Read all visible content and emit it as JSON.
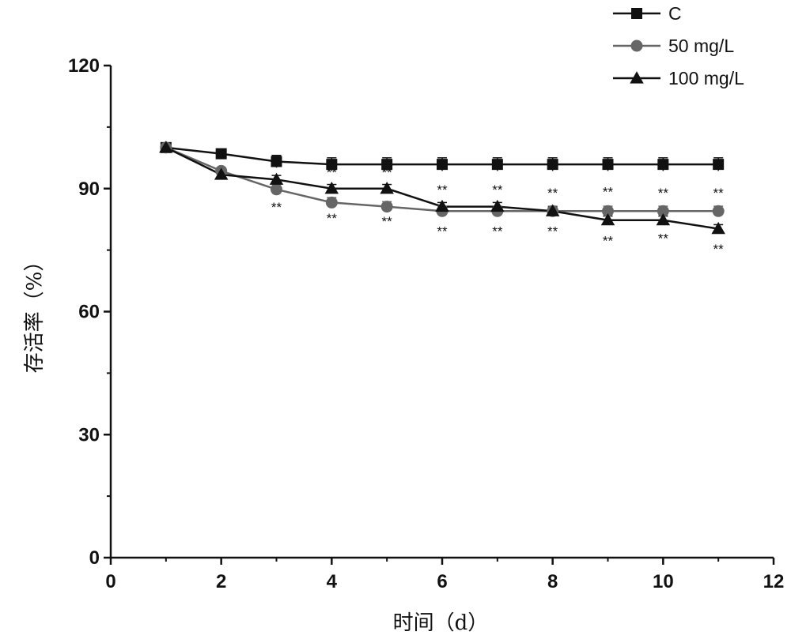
{
  "chart_data": {
    "type": "line",
    "title": "",
    "xlabel": "时间（d）",
    "ylabel": "存活率（%）",
    "xlim": [
      0,
      12
    ],
    "ylim": [
      0,
      120
    ],
    "xticks": [
      "0",
      "2",
      "4",
      "6",
      "8",
      "10",
      "12"
    ],
    "yticks": [
      "0",
      "30",
      "60",
      "90",
      "120"
    ],
    "legend_position": "top-right",
    "grid": false,
    "x": [
      1,
      2,
      3,
      4,
      5,
      6,
      7,
      8,
      9,
      10,
      11
    ],
    "series": [
      {
        "name": "C",
        "marker": "square",
        "color": "#111111",
        "values": [
          100,
          98.5,
          96.6,
          95.9,
          95.9,
          95.9,
          95.9,
          95.9,
          95.9,
          95.9,
          95.9
        ],
        "error": [
          0,
          0.8,
          1.5,
          1.6,
          1.6,
          1.6,
          1.6,
          1.6,
          1.6,
          1.6,
          1.6
        ]
      },
      {
        "name": "50 mg/L",
        "marker": "circle",
        "color": "#666666",
        "values": [
          100,
          94.3,
          89.8,
          86.6,
          85.6,
          84.5,
          84.5,
          84.5,
          84.5,
          84.5,
          84.5
        ],
        "error": [
          0,
          0.8,
          1.2,
          1.2,
          1.2,
          1.2,
          1.2,
          1.2,
          1.2,
          1.2,
          1.2
        ]
      },
      {
        "name": "100 mg/L",
        "marker": "triangle",
        "color": "#111111",
        "values": [
          100,
          93.4,
          92.2,
          90.0,
          90.0,
          85.6,
          85.6,
          84.5,
          82.3,
          82.3,
          80.2
        ],
        "error": [
          0,
          0.8,
          1.0,
          1.0,
          1.0,
          1.0,
          1.0,
          1.0,
          1.0,
          1.0,
          1.0
        ]
      }
    ],
    "annotations": [
      {
        "text": "**",
        "x": 4,
        "y": 92.8
      },
      {
        "text": "**",
        "x": 5,
        "y": 92.8
      },
      {
        "text": "**",
        "x": 6,
        "y": 88.6
      },
      {
        "text": "**",
        "x": 7,
        "y": 88.6
      },
      {
        "text": "**",
        "x": 8,
        "y": 87.8
      },
      {
        "text": "**",
        "x": 9,
        "y": 88.1
      },
      {
        "text": "**",
        "x": 10,
        "y": 87.8
      },
      {
        "text": "**",
        "x": 11,
        "y": 87.8
      },
      {
        "text": "**",
        "x": 3,
        "y": 84.4
      },
      {
        "text": "**",
        "x": 4,
        "y": 81.7
      },
      {
        "text": "**",
        "x": 5,
        "y": 80.9
      },
      {
        "text": "**",
        "x": 6,
        "y": 78.5
      },
      {
        "text": "**",
        "x": 7,
        "y": 78.5
      },
      {
        "text": "**",
        "x": 8,
        "y": 78.5
      },
      {
        "text": "**",
        "x": 9,
        "y": 76.2
      },
      {
        "text": "**",
        "x": 10,
        "y": 76.8
      },
      {
        "text": "**",
        "x": 11,
        "y": 74.2
      }
    ]
  }
}
